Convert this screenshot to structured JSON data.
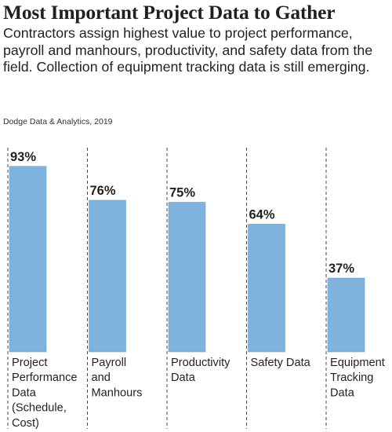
{
  "title": "Most Important Project Data to Gather",
  "subtitle": "Contractors assign highest value to project performance, payroll and manhours, productivity, and safety data from the field. Collection of equipment tracking data is still emerging.",
  "source": "Dodge Data & Analytics, 2019",
  "colors": {
    "bar": "#7fb2dc",
    "bar_stroke": "#6b9fca",
    "dash": "#4a4a4a",
    "text": "#231f20"
  },
  "chart_data": {
    "type": "bar",
    "categories": [
      "Project Performance Data (Schedule, Cost)",
      "Payroll and Manhours",
      "Productivity Data",
      "Safety Data",
      "Equipment Tracking Data"
    ],
    "category_lines": [
      [
        "Project",
        "Performance",
        "Data",
        "(Schedule,",
        "Cost)"
      ],
      [
        "Payroll",
        "and",
        "Manhours"
      ],
      [
        "Productivity",
        "Data"
      ],
      [
        "Safety Data"
      ],
      [
        "Equipment",
        "Tracking",
        "Data"
      ]
    ],
    "values": [
      93,
      76,
      75,
      64,
      37
    ],
    "value_labels": [
      "93%",
      "76%",
      "75%",
      "64%",
      "37%"
    ],
    "ylim": [
      0,
      100
    ],
    "xlabel": "",
    "ylabel": "",
    "grid": false,
    "legend": "none"
  }
}
